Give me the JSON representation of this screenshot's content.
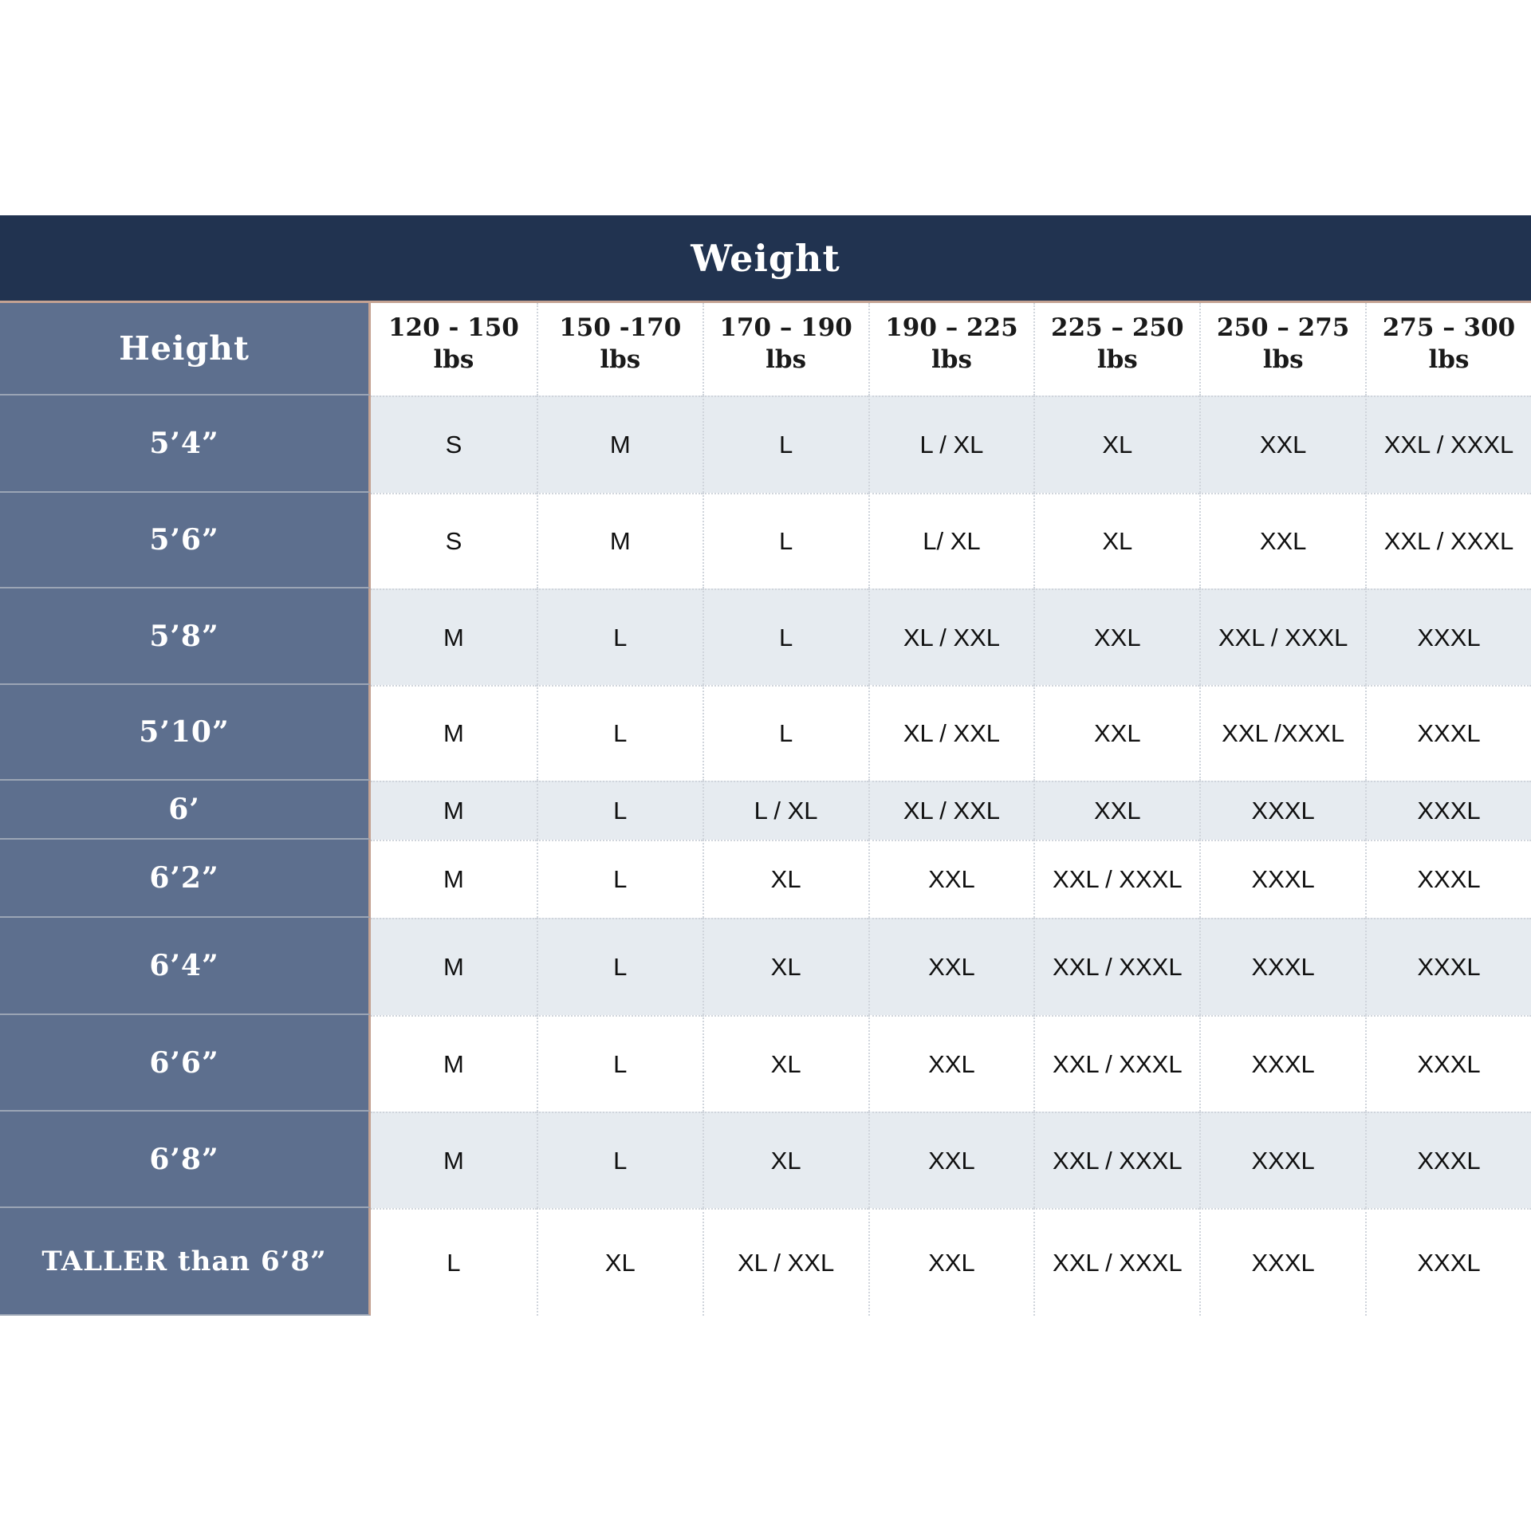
{
  "banner": {
    "title": "Weight"
  },
  "table": {
    "corner_label": "Height",
    "weight_columns": [
      {
        "range": "120 - 150",
        "unit": "lbs"
      },
      {
        "range": "150 -170",
        "unit": "lbs"
      },
      {
        "range": "170 – 190",
        "unit": "lbs"
      },
      {
        "range": "190 – 225",
        "unit": "lbs"
      },
      {
        "range": "225 – 250",
        "unit": "lbs"
      },
      {
        "range": "250 – 275",
        "unit": "lbs"
      },
      {
        "range": "275 – 300",
        "unit": "lbs"
      }
    ],
    "rows": [
      {
        "height": "5’4”",
        "sizes": [
          "S",
          "M",
          "L",
          "L / XL",
          "XL",
          "XXL",
          "XXL / XXXL"
        ]
      },
      {
        "height": "5’6”",
        "sizes": [
          "S",
          "M",
          "L",
          "L/ XL",
          "XL",
          "XXL",
          "XXL / XXXL"
        ]
      },
      {
        "height": "5’8”",
        "sizes": [
          "M",
          "L",
          "L",
          "XL / XXL",
          "XXL",
          "XXL / XXXL",
          "XXXL"
        ]
      },
      {
        "height": "5’10”",
        "sizes": [
          "M",
          "L",
          "L",
          "XL / XXL",
          "XXL",
          "XXL /XXXL",
          "XXXL"
        ]
      },
      {
        "height": "6’",
        "sizes": [
          "M",
          "L",
          "L / XL",
          "XL / XXL",
          "XXL",
          "XXXL",
          "XXXL"
        ]
      },
      {
        "height": "6’2”",
        "sizes": [
          "M",
          "L",
          "XL",
          "XXL",
          "XXL / XXXL",
          "XXXL",
          "XXXL"
        ]
      },
      {
        "height": "6’4”",
        "sizes": [
          "M",
          "L",
          "XL",
          "XXL",
          "XXL / XXXL",
          "XXXL",
          "XXXL"
        ]
      },
      {
        "height": "6’6”",
        "sizes": [
          "M",
          "L",
          "XL",
          "XXL",
          "XXL / XXXL",
          "XXXL",
          "XXXL"
        ]
      },
      {
        "height": "6’8”",
        "sizes": [
          "M",
          "L",
          "XL",
          "XXL",
          "XXL / XXXL",
          "XXXL",
          "XXXL"
        ]
      },
      {
        "height": "TALLER than 6’8”",
        "sizes": [
          "L",
          "XL",
          "XL / XXL",
          "XXL",
          "XXL / XXXL",
          "XXXL",
          "XXXL"
        ]
      }
    ]
  },
  "chart_data": {
    "type": "table",
    "title": "Weight",
    "row_axis_label": "Height",
    "columns": [
      "Height",
      "120 - 150 lbs",
      "150 -170 lbs",
      "170 – 190 lbs",
      "190 – 225 lbs",
      "225 – 250 lbs",
      "250 – 275 lbs",
      "275 – 300 lbs"
    ],
    "rows": [
      [
        "5’4”",
        "S",
        "M",
        "L",
        "L / XL",
        "XL",
        "XXL",
        "XXL / XXXL"
      ],
      [
        "5’6”",
        "S",
        "M",
        "L",
        "L/ XL",
        "XL",
        "XXL",
        "XXL / XXXL"
      ],
      [
        "5’8”",
        "M",
        "L",
        "L",
        "XL / XXL",
        "XXL",
        "XXL / XXXL",
        "XXXL"
      ],
      [
        "5’10”",
        "M",
        "L",
        "L",
        "XL / XXL",
        "XXL",
        "XXL /XXXL",
        "XXXL"
      ],
      [
        "6’",
        "M",
        "L",
        "L / XL",
        "XL / XXL",
        "XXL",
        "XXXL",
        "XXXL"
      ],
      [
        "6’2”",
        "M",
        "L",
        "XL",
        "XXL",
        "XXL / XXXL",
        "XXXL",
        "XXXL"
      ],
      [
        "6’4”",
        "M",
        "L",
        "XL",
        "XXL",
        "XXL / XXXL",
        "XXXL",
        "XXXL"
      ],
      [
        "6’6”",
        "M",
        "L",
        "XL",
        "XXL",
        "XXL / XXXL",
        "XXXL",
        "XXXL"
      ],
      [
        "6’8”",
        "M",
        "L",
        "XL",
        "XXL",
        "XXL / XXXL",
        "XXXL",
        "XXXL"
      ],
      [
        "TALLER than 6’8”",
        "L",
        "XL",
        "XL / XXL",
        "XXL",
        "XXL / XXXL",
        "XXXL",
        "XXXL"
      ]
    ]
  },
  "colors": {
    "banner_navy": "#213350",
    "height_column_slate": "#5d6f8e",
    "striped_row_gray": "#e6ebf0",
    "accent_tan_border": "#c4a292",
    "header_text_dark": "#1a1a1a"
  }
}
